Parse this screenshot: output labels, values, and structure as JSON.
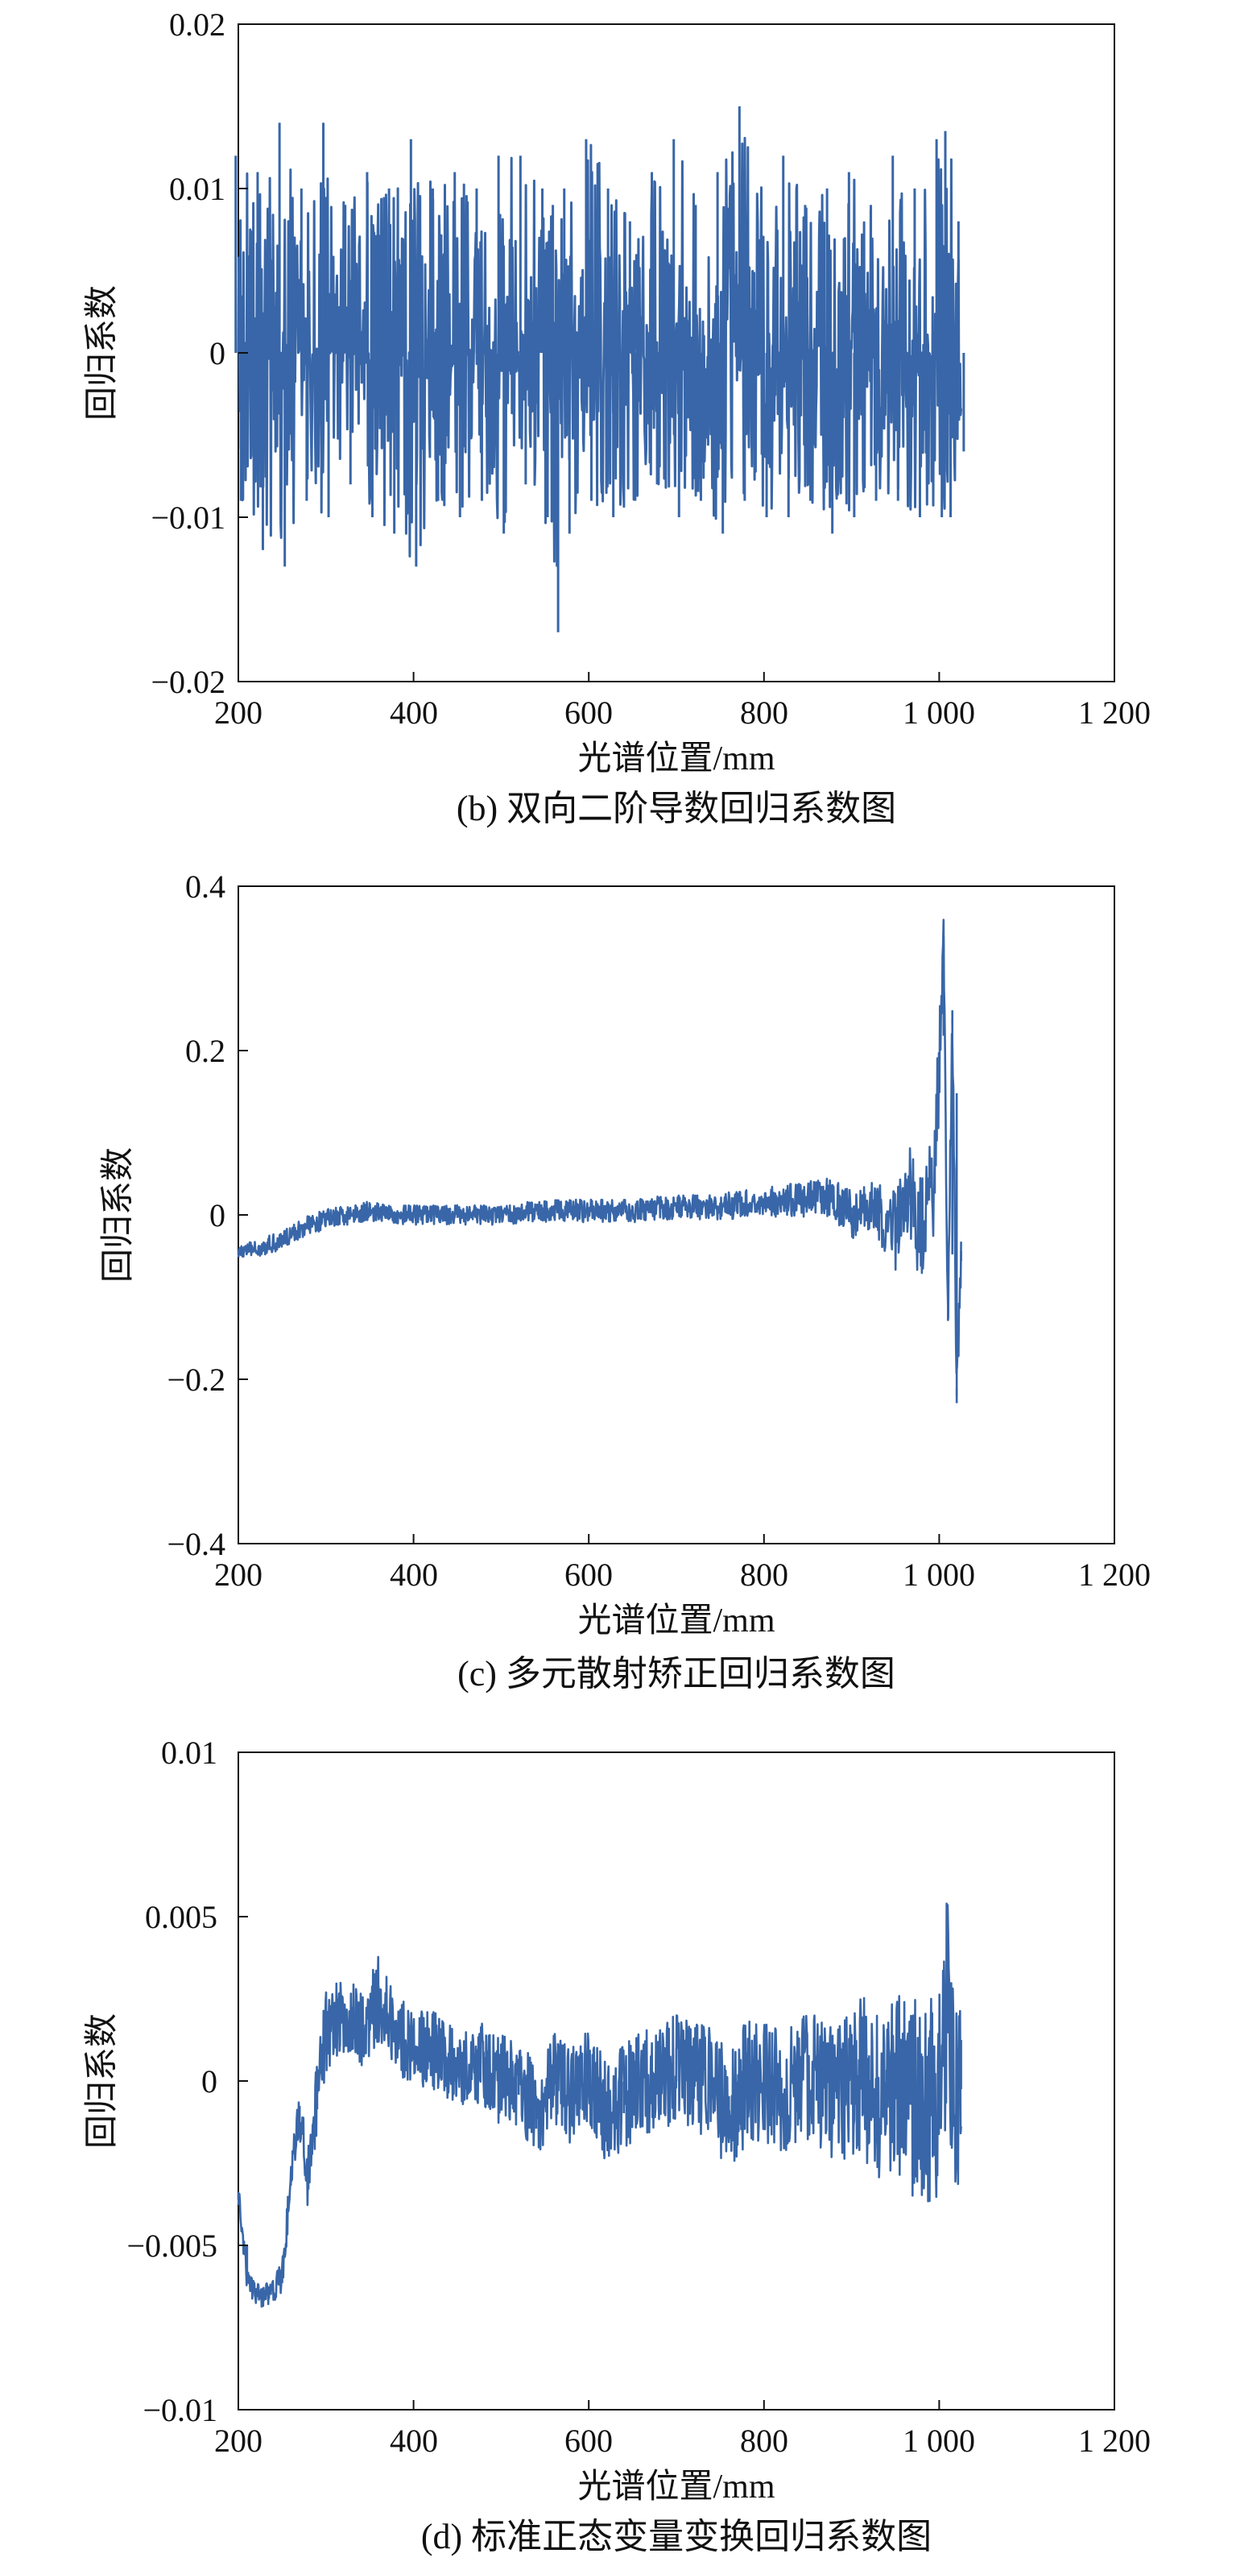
{
  "chart_data": [
    {
      "type": "line",
      "caption": "(b) 双向二阶导数回归系数图",
      "xlabel": "光谱位置/mm",
      "ylabel": "回归系数",
      "xlim": [
        200,
        1200
      ],
      "ylim": [
        -0.02,
        0.02
      ],
      "xticks": [
        200,
        400,
        600,
        800,
        1000,
        1200
      ],
      "xtick_labels": [
        "200",
        "400",
        "600",
        "800",
        "1 000",
        "1 200"
      ],
      "yticks": [
        -0.02,
        -0.01,
        0,
        0.01,
        0.02
      ],
      "ytick_labels": [
        "−0.02",
        "−0.01",
        "0",
        "0.01",
        "0.02"
      ],
      "series": [
        {
          "color": "#3866a8",
          "x": [
            200,
            225,
            250,
            275,
            300,
            325,
            350,
            375,
            400,
            425,
            450,
            475,
            500,
            525,
            550,
            562,
            575,
            600,
            625,
            650,
            675,
            700,
            725,
            750,
            775,
            800,
            825,
            850,
            875,
            900,
            925,
            950,
            975,
            1000,
            1010,
            1025
          ],
          "y_upper": [
            0.012,
            0.011,
            0.014,
            0.01,
            0.014,
            0.009,
            0.011,
            0.01,
            0.013,
            0.01,
            0.011,
            0.01,
            0.012,
            0.012,
            0.01,
            0.009,
            0.01,
            0.013,
            0.01,
            0.008,
            0.011,
            0.013,
            0.009,
            0.011,
            0.015,
            0.01,
            0.012,
            0.009,
            0.01,
            0.011,
            0.009,
            0.012,
            0.01,
            0.013,
            0.0135,
            0.008
          ],
          "y_lower": [
            -0.009,
            -0.012,
            -0.013,
            -0.009,
            -0.01,
            -0.008,
            -0.01,
            -0.011,
            -0.013,
            -0.009,
            -0.01,
            -0.009,
            -0.011,
            -0.008,
            -0.01,
            -0.017,
            -0.011,
            -0.009,
            -0.01,
            -0.009,
            -0.008,
            -0.01,
            -0.009,
            -0.011,
            -0.009,
            -0.01,
            -0.01,
            -0.009,
            -0.011,
            -0.01,
            -0.009,
            -0.009,
            -0.01,
            -0.01,
            -0.01,
            -0.006
          ]
        }
      ]
    },
    {
      "type": "line",
      "caption": "(c) 多元散射矫正回归系数图",
      "xlabel": "光谱位置/mm",
      "ylabel": "回归系数",
      "xlim": [
        200,
        1200
      ],
      "ylim": [
        -0.4,
        0.4
      ],
      "xticks": [
        200,
        400,
        600,
        800,
        1000,
        1200
      ],
      "xtick_labels": [
        "200",
        "400",
        "600",
        "800",
        "1 000",
        "1 200"
      ],
      "yticks": [
        -0.4,
        -0.2,
        0,
        0.2,
        0.4
      ],
      "ytick_labels": [
        "−0.4",
        "−0.2",
        "0",
        "0.2",
        "0.4"
      ],
      "series": [
        {
          "color": "#3866a8",
          "x": [
            200,
            225,
            250,
            275,
            300,
            325,
            350,
            375,
            400,
            450,
            500,
            550,
            600,
            650,
            700,
            750,
            800,
            850,
            875,
            900,
            925,
            950,
            965,
            980,
            995,
            1005,
            1010,
            1015,
            1020,
            1025
          ],
          "y": [
            -0.045,
            -0.04,
            -0.03,
            -0.015,
            -0.005,
            0.0,
            0.005,
            0.0,
            0.0,
            0.0,
            0.0,
            0.005,
            0.005,
            0.005,
            0.01,
            0.01,
            0.015,
            0.02,
            0.02,
            0.0,
            0.01,
            -0.02,
            0.03,
            -0.02,
            0.05,
            0.33,
            -0.12,
            0.24,
            -0.22,
            -0.05
          ],
          "amp": [
            0.008,
            0.01,
            0.012,
            0.012,
            0.012,
            0.012,
            0.012,
            0.012,
            0.012,
            0.012,
            0.012,
            0.014,
            0.014,
            0.014,
            0.015,
            0.016,
            0.018,
            0.022,
            0.025,
            0.03,
            0.03,
            0.05,
            0.06,
            0.07,
            0.08,
            0.03,
            0.03,
            0.03,
            0.03,
            0.02
          ]
        }
      ]
    },
    {
      "type": "line",
      "caption": "(d) 标准正态变量变换回归系数图",
      "xlabel": "光谱位置/mm",
      "ylabel": "回归系数",
      "xlim": [
        200,
        1200
      ],
      "ylim": [
        -0.01,
        0.01
      ],
      "xticks": [
        200,
        400,
        600,
        800,
        1000,
        1200
      ],
      "xtick_labels": [
        "200",
        "400",
        "600",
        "800",
        "1 000",
        "1 200"
      ],
      "yticks": [
        -0.01,
        -0.005,
        0,
        0.005,
        0.01
      ],
      "ytick_labels": [
        "−0.01",
        "−0.005",
        "0",
        "0.005",
        "0.01"
      ],
      "series": [
        {
          "color": "#3866a8",
          "x": [
            200,
            210,
            220,
            235,
            250,
            260,
            270,
            280,
            290,
            300,
            320,
            340,
            360,
            380,
            400,
            420,
            440,
            460,
            480,
            500,
            520,
            540,
            560,
            580,
            600,
            620,
            640,
            660,
            680,
            700,
            720,
            740,
            760,
            780,
            800,
            820,
            840,
            860,
            880,
            900,
            920,
            940,
            960,
            980,
            1000,
            1010,
            1020,
            1025
          ],
          "y": [
            -0.0035,
            -0.006,
            -0.0065,
            -0.0065,
            -0.006,
            -0.003,
            -0.001,
            -0.003,
            -0.0005,
            0.0015,
            0.002,
            0.0015,
            0.0025,
            0.0015,
            0.001,
            0.001,
            0.0005,
            0.0005,
            0.0005,
            0.0,
            0.0,
            -0.001,
            0.0,
            -0.0005,
            0.0,
            -0.001,
            -0.0005,
            0.0,
            0.0,
            0.0005,
            0.0,
            0.0,
            -0.001,
            0.0,
            0.0,
            -0.0005,
            0.0,
            0.0,
            -0.0005,
            0.0,
            0.0,
            -0.0005,
            0.0,
            -0.001,
            0.0,
            0.0025,
            -0.001,
            0.0005
          ],
          "amp": [
            0.0004,
            0.0004,
            0.0004,
            0.0004,
            0.0005,
            0.0006,
            0.0008,
            0.001,
            0.0012,
            0.0012,
            0.0012,
            0.0013,
            0.0013,
            0.0012,
            0.0012,
            0.0012,
            0.0012,
            0.0013,
            0.0013,
            0.0014,
            0.0014,
            0.0015,
            0.0015,
            0.0015,
            0.0016,
            0.0016,
            0.0016,
            0.0016,
            0.0017,
            0.0017,
            0.0018,
            0.0018,
            0.0018,
            0.0019,
            0.0019,
            0.002,
            0.002,
            0.002,
            0.0022,
            0.0024,
            0.0026,
            0.0028,
            0.003,
            0.0033,
            0.0036,
            0.0035,
            0.003,
            0.0025
          ]
        }
      ]
    }
  ]
}
